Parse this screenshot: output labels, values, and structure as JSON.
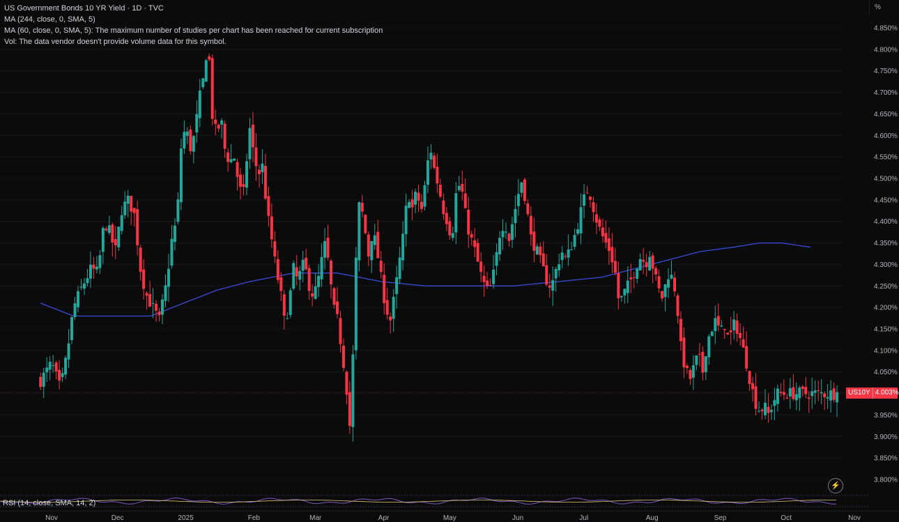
{
  "legend": {
    "title": "US Government Bonds 10 YR Yield · 1D · TVC",
    "ma1": "MA (244, close, 0, SMA, 5)",
    "ma2": "MA (60, close, 0, SMA, 5): The maximum number of studies per chart has been reached for current subscription",
    "vol": "Vol: The data vendor doesn't provide volume data for this symbol."
  },
  "unit_label": "%",
  "price_tag": {
    "symbol": "US10Y",
    "value": "4.003%"
  },
  "rsi_label": "RSI (14, close, SMA, 14, 2)",
  "lightning_icon": "lightning-icon",
  "colors": {
    "up": "#26a69a",
    "down": "#f23645",
    "ma": "#3b4bd8",
    "background": "#0b0b0c",
    "text": "#b2b5be"
  },
  "chart_data": {
    "type": "candlestick",
    "y_ticks": [
      "4.850%",
      "4.800%",
      "4.750%",
      "4.700%",
      "4.650%",
      "4.600%",
      "4.550%",
      "4.500%",
      "4.450%",
      "4.400%",
      "4.350%",
      "4.300%",
      "4.250%",
      "4.200%",
      "4.150%",
      "4.100%",
      "4.050%",
      "4.000%",
      "3.950%",
      "3.900%",
      "3.850%",
      "3.800%"
    ],
    "ylim": [
      3.78,
      4.88
    ],
    "x_labels": [
      "Nov",
      "Dec",
      "2025",
      "Feb",
      "Mar",
      "Apr",
      "May",
      "Jun",
      "Jul",
      "Aug",
      "Sep",
      "Oct",
      "Nov"
    ],
    "x_label_days": [
      0,
      30,
      61,
      92,
      120,
      151,
      181,
      212,
      242,
      273,
      304,
      334,
      365
    ],
    "last_day": 358,
    "current_value": 4.003,
    "anchors": [
      [
        -5,
        4.03
      ],
      [
        0,
        4.07
      ],
      [
        4,
        4.01
      ],
      [
        7,
        4.09
      ],
      [
        10,
        4.2
      ],
      [
        14,
        4.25
      ],
      [
        18,
        4.29
      ],
      [
        21,
        4.28
      ],
      [
        24,
        4.4
      ],
      [
        26,
        4.38
      ],
      [
        29,
        4.33
      ],
      [
        32,
        4.43
      ],
      [
        35,
        4.45
      ],
      [
        38,
        4.41
      ],
      [
        40,
        4.3
      ],
      [
        43,
        4.23
      ],
      [
        46,
        4.2
      ],
      [
        49,
        4.17
      ],
      [
        52,
        4.25
      ],
      [
        55,
        4.37
      ],
      [
        57,
        4.4
      ],
      [
        59,
        4.58
      ],
      [
        61,
        4.62
      ],
      [
        63,
        4.57
      ],
      [
        65,
        4.6
      ],
      [
        67,
        4.68
      ],
      [
        69,
        4.73
      ],
      [
        70,
        4.79
      ],
      [
        72,
        4.77
      ],
      [
        73,
        4.65
      ],
      [
        75,
        4.6
      ],
      [
        77,
        4.64
      ],
      [
        79,
        4.56
      ],
      [
        81,
        4.54
      ],
      [
        83,
        4.55
      ],
      [
        85,
        4.49
      ],
      [
        87,
        4.45
      ],
      [
        89,
        4.56
      ],
      [
        90,
        4.62
      ],
      [
        92,
        4.55
      ],
      [
        94,
        4.51
      ],
      [
        96,
        4.53
      ],
      [
        98,
        4.42
      ],
      [
        100,
        4.36
      ],
      [
        102,
        4.29
      ],
      [
        104,
        4.24
      ],
      [
        106,
        4.16
      ],
      [
        108,
        4.21
      ],
      [
        110,
        4.29
      ],
      [
        112,
        4.26
      ],
      [
        114,
        4.3
      ],
      [
        116,
        4.28
      ],
      [
        118,
        4.23
      ],
      [
        120,
        4.24
      ],
      [
        122,
        4.28
      ],
      [
        124,
        4.35
      ],
      [
        126,
        4.3
      ],
      [
        128,
        4.2
      ],
      [
        130,
        4.17
      ],
      [
        132,
        4.1
      ],
      [
        134,
        4.02
      ],
      [
        136,
        3.9
      ],
      [
        138,
        4.27
      ],
      [
        140,
        4.45
      ],
      [
        142,
        4.4
      ],
      [
        144,
        4.32
      ],
      [
        146,
        4.38
      ],
      [
        148,
        4.33
      ],
      [
        150,
        4.26
      ],
      [
        152,
        4.2
      ],
      [
        154,
        4.17
      ],
      [
        156,
        4.23
      ],
      [
        158,
        4.3
      ],
      [
        160,
        4.37
      ],
      [
        162,
        4.47
      ],
      [
        164,
        4.43
      ],
      [
        166,
        4.47
      ],
      [
        168,
        4.42
      ],
      [
        170,
        4.49
      ],
      [
        172,
        4.58
      ],
      [
        174,
        4.52
      ],
      [
        176,
        4.48
      ],
      [
        178,
        4.43
      ],
      [
        180,
        4.4
      ],
      [
        182,
        4.36
      ],
      [
        184,
        4.47
      ],
      [
        186,
        4.49
      ],
      [
        188,
        4.42
      ],
      [
        190,
        4.37
      ],
      [
        192,
        4.34
      ],
      [
        194,
        4.3
      ],
      [
        196,
        4.26
      ],
      [
        198,
        4.24
      ],
      [
        200,
        4.25
      ],
      [
        202,
        4.31
      ],
      [
        204,
        4.38
      ],
      [
        206,
        4.4
      ],
      [
        208,
        4.36
      ],
      [
        210,
        4.41
      ],
      [
        212,
        4.46
      ],
      [
        214,
        4.5
      ],
      [
        216,
        4.43
      ],
      [
        218,
        4.36
      ],
      [
        220,
        4.34
      ],
      [
        222,
        4.31
      ],
      [
        224,
        4.28
      ],
      [
        226,
        4.25
      ],
      [
        228,
        4.26
      ],
      [
        230,
        4.3
      ],
      [
        232,
        4.33
      ],
      [
        234,
        4.31
      ],
      [
        236,
        4.34
      ],
      [
        238,
        4.37
      ],
      [
        240,
        4.41
      ],
      [
        242,
        4.45
      ],
      [
        244,
        4.48
      ],
      [
        246,
        4.44
      ],
      [
        248,
        4.4
      ],
      [
        250,
        4.37
      ],
      [
        252,
        4.35
      ],
      [
        254,
        4.33
      ],
      [
        256,
        4.29
      ],
      [
        258,
        4.21
      ],
      [
        260,
        4.23
      ],
      [
        262,
        4.25
      ],
      [
        264,
        4.27
      ],
      [
        266,
        4.3
      ],
      [
        268,
        4.32
      ],
      [
        270,
        4.3
      ],
      [
        272,
        4.33
      ],
      [
        274,
        4.28
      ],
      [
        276,
        4.24
      ],
      [
        278,
        4.22
      ],
      [
        280,
        4.28
      ],
      [
        282,
        4.27
      ],
      [
        284,
        4.23
      ],
      [
        286,
        4.11
      ],
      [
        288,
        4.06
      ],
      [
        290,
        4.03
      ],
      [
        292,
        4.06
      ],
      [
        294,
        4.09
      ],
      [
        296,
        4.05
      ],
      [
        298,
        4.12
      ],
      [
        300,
        4.15
      ],
      [
        302,
        4.17
      ],
      [
        304,
        4.14
      ],
      [
        306,
        4.16
      ],
      [
        308,
        4.12
      ],
      [
        310,
        4.16
      ],
      [
        312,
        4.15
      ],
      [
        314,
        4.11
      ],
      [
        316,
        4.07
      ],
      [
        318,
        4.02
      ],
      [
        320,
        3.98
      ],
      [
        322,
        3.96
      ],
      [
        324,
        3.97
      ],
      [
        326,
        3.95
      ],
      [
        328,
        3.98
      ],
      [
        330,
        4.0
      ]
    ],
    "ma244": [
      [
        -5,
        4.21
      ],
      [
        10,
        4.18
      ],
      [
        25,
        4.18
      ],
      [
        45,
        4.18
      ],
      [
        60,
        4.21
      ],
      [
        75,
        4.24
      ],
      [
        90,
        4.26
      ],
      [
        110,
        4.28
      ],
      [
        130,
        4.28
      ],
      [
        150,
        4.26
      ],
      [
        170,
        4.25
      ],
      [
        190,
        4.25
      ],
      [
        210,
        4.25
      ],
      [
        230,
        4.26
      ],
      [
        250,
        4.27
      ],
      [
        265,
        4.29
      ],
      [
        280,
        4.31
      ],
      [
        295,
        4.33
      ],
      [
        310,
        4.34
      ],
      [
        322,
        4.35
      ],
      [
        332,
        4.35
      ],
      [
        345,
        4.34
      ]
    ]
  }
}
